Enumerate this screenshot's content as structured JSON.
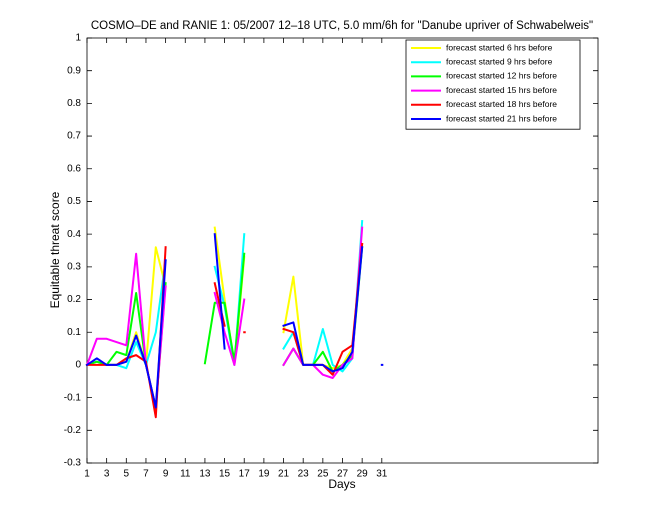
{
  "chart_data": {
    "type": "line",
    "title": "COSMO–DE and RANIE 1: 05/2007 12–18 UTC, 5.0 mm/6h for \"Danube upriver of Schwabelweis\"",
    "xlabel": "Days",
    "ylabel": "Equitable threat score",
    "x": [
      1,
      2,
      3,
      4,
      5,
      6,
      7,
      8,
      9,
      10,
      11,
      12,
      13,
      14,
      15,
      16,
      17,
      18,
      19,
      20,
      21,
      22,
      23,
      24,
      25,
      26,
      27,
      28,
      29,
      30,
      31
    ],
    "xlim": [
      1,
      53
    ],
    "ylim": [
      -0.3,
      1
    ],
    "xticks": [
      1,
      3,
      5,
      7,
      9,
      11,
      13,
      15,
      17,
      19,
      21,
      23,
      25,
      27,
      29,
      31
    ],
    "yticks": [
      -0.3,
      -0.2,
      -0.1,
      0,
      0.1,
      0.2,
      0.3,
      0.4,
      0.5,
      0.6,
      0.7,
      0.8,
      0.9,
      1
    ],
    "legend": "upper right",
    "series": [
      {
        "name": "forecast started 6 hrs before",
        "color": "#ffff00",
        "values": [
          0,
          0.01,
          0,
          0,
          0.01,
          0.1,
          0,
          0.36,
          0.24,
          null,
          null,
          null,
          null,
          0.42,
          0.2,
          0,
          0.33,
          null,
          null,
          null,
          0.1,
          0.27,
          0,
          0,
          0,
          -0.01,
          0,
          0.05,
          0.37,
          null,
          null
        ]
      },
      {
        "name": "forecast started 9 hrs before",
        "color": "#00ffff",
        "values": [
          0,
          0.01,
          0,
          0,
          -0.01,
          0.07,
          0,
          0.1,
          0.32,
          null,
          null,
          null,
          null,
          0.3,
          0.18,
          0,
          0.4,
          null,
          null,
          null,
          0.05,
          0.1,
          0,
          0,
          0.11,
          0,
          -0.02,
          0.02,
          0.44,
          null,
          null
        ]
      },
      {
        "name": "forecast started 12 hrs before",
        "color": "#00ff00",
        "values": [
          0,
          0.01,
          0,
          0.04,
          0.03,
          0.22,
          0,
          -0.13,
          0.25,
          null,
          null,
          null,
          0.005,
          0.19,
          0.19,
          0.01,
          0.34,
          null,
          null,
          null,
          0,
          0.05,
          0,
          0,
          0.04,
          -0.02,
          0,
          0.03,
          0.36,
          null,
          null
        ]
      },
      {
        "name": "forecast started 15 hrs before",
        "color": "#ff00ff",
        "values": [
          0,
          0.08,
          0.08,
          0.07,
          0.06,
          0.34,
          0,
          -0.13,
          0.24,
          null,
          null,
          null,
          null,
          0.22,
          0.1,
          0,
          0.2,
          null,
          null,
          null,
          0,
          0.05,
          0,
          0,
          -0.03,
          -0.04,
          0,
          0.02,
          0.42,
          null,
          null
        ]
      },
      {
        "name": "forecast started 18 hrs before",
        "color": "#ff0000",
        "values": [
          0,
          0,
          0,
          0,
          0.02,
          0.03,
          0.01,
          -0.16,
          0.36,
          null,
          null,
          null,
          null,
          0.25,
          0.12,
          null,
          0.1,
          null,
          null,
          null,
          0.11,
          0.1,
          0,
          0,
          0,
          -0.03,
          0.04,
          0.06,
          0.37,
          null,
          null
        ]
      },
      {
        "name": "forecast started 21 hrs before",
        "color": "#0000ff",
        "values": [
          0,
          0.02,
          0,
          0,
          0.01,
          0.09,
          0,
          -0.13,
          0.32,
          null,
          null,
          null,
          null,
          0.4,
          0.05,
          null,
          null,
          null,
          null,
          null,
          0.12,
          0.13,
          0,
          0,
          0,
          -0.02,
          -0.01,
          0.04,
          0.36,
          null,
          0
        ]
      }
    ]
  }
}
